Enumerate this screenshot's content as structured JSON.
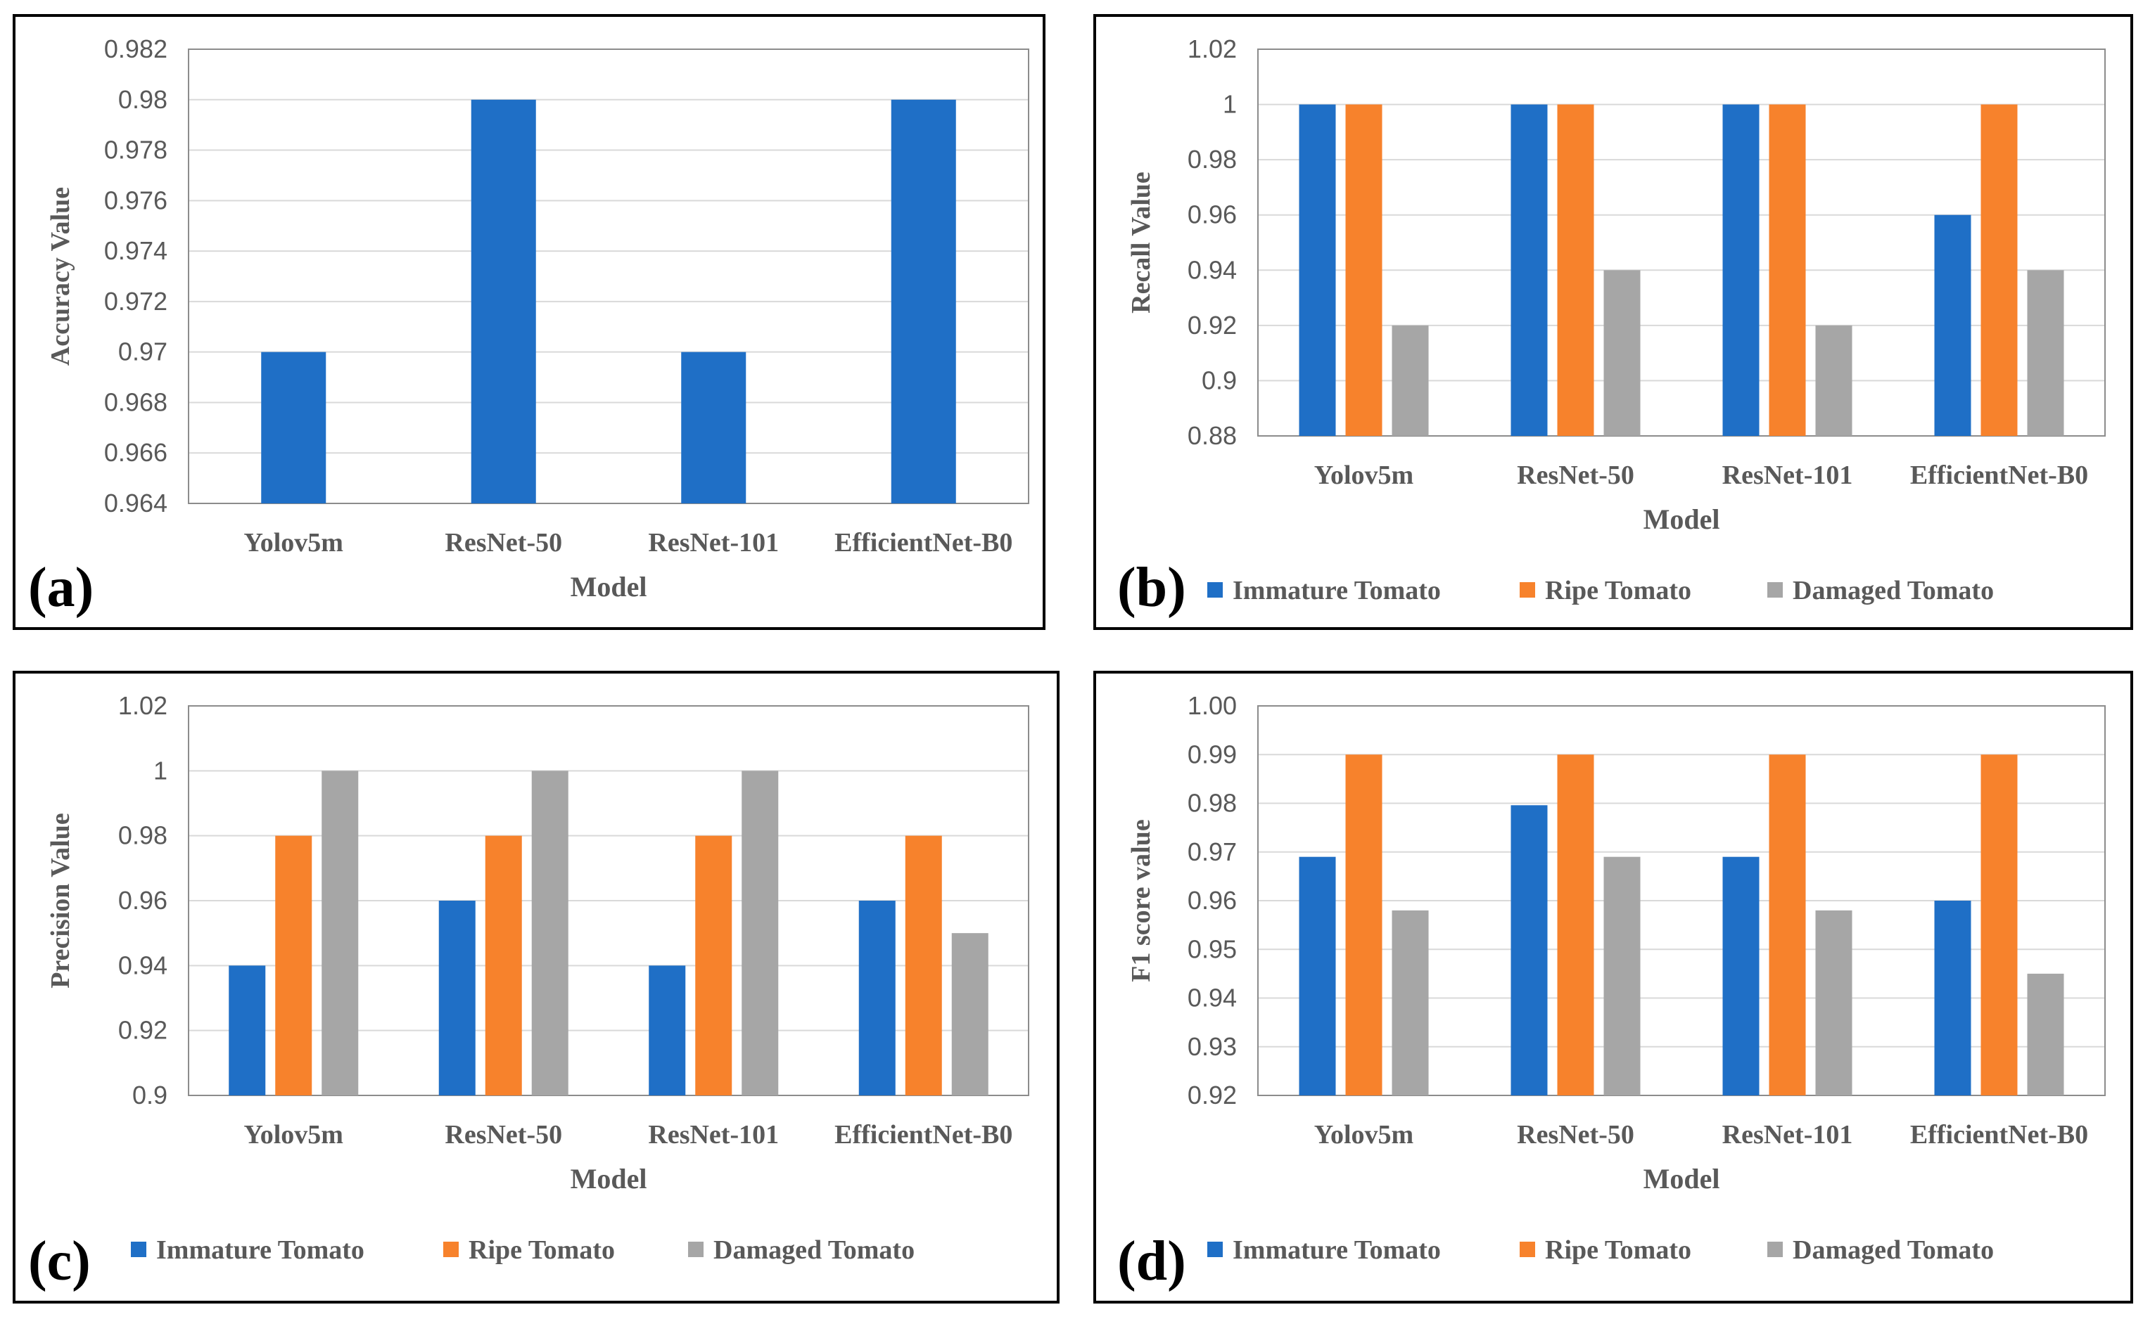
{
  "colors": {
    "immature": "#1f6fc6",
    "ripe": "#f7822c",
    "damaged": "#a6a6a6"
  },
  "legend_labels": [
    "Immature Tomato",
    "Ripe Tomato",
    "Damaged Tomato"
  ],
  "chart_data": [
    {
      "id": "a",
      "type": "bar",
      "panel_label": "(a)",
      "xlabel": "Model",
      "ylabel": "Accuracy Value",
      "categories": [
        "Yolov5m",
        "ResNet-50",
        "ResNet-101",
        "EfficientNet-B0"
      ],
      "ylim": [
        0.964,
        0.982
      ],
      "yticks": [
        "0.964",
        "0.966",
        "0.968",
        "0.97",
        "0.972",
        "0.974",
        "0.976",
        "0.978",
        "0.98",
        "0.982"
      ],
      "series": [
        {
          "name": "Accuracy",
          "color": "#1f6fc6",
          "values": [
            0.97,
            0.98,
            0.97,
            0.98
          ]
        }
      ],
      "legend": false
    },
    {
      "id": "b",
      "type": "bar",
      "panel_label": "(b)",
      "xlabel": "Model",
      "ylabel": "Recall Value",
      "categories": [
        "Yolov5m",
        "ResNet-50",
        "ResNet-101",
        "EfficientNet-B0"
      ],
      "ylim": [
        0.88,
        1.02
      ],
      "yticks": [
        "0.88",
        "0.9",
        "0.92",
        "0.94",
        "0.96",
        "0.98",
        "1",
        "1.02"
      ],
      "series": [
        {
          "name": "Immature Tomato",
          "color": "#1f6fc6",
          "values": [
            1.0,
            1.0,
            1.0,
            0.96
          ]
        },
        {
          "name": "Ripe Tomato",
          "color": "#f7822c",
          "values": [
            1.0,
            1.0,
            1.0,
            1.0
          ]
        },
        {
          "name": "Damaged Tomato",
          "color": "#a6a6a6",
          "values": [
            0.92,
            0.94,
            0.92,
            0.94
          ]
        }
      ],
      "legend": true
    },
    {
      "id": "c",
      "type": "bar",
      "panel_label": "(c)",
      "xlabel": "Model",
      "ylabel": "Precision Value",
      "categories": [
        "Yolov5m",
        "ResNet-50",
        "ResNet-101",
        "EfficientNet-B0"
      ],
      "ylim": [
        0.9,
        1.02
      ],
      "yticks": [
        "0.9",
        "0.92",
        "0.94",
        "0.96",
        "0.98",
        "1",
        "1.02"
      ],
      "series": [
        {
          "name": "Immature Tomato",
          "color": "#1f6fc6",
          "values": [
            0.94,
            0.96,
            0.94,
            0.96
          ]
        },
        {
          "name": "Ripe Tomato",
          "color": "#f7822c",
          "values": [
            0.98,
            0.98,
            0.98,
            0.98
          ]
        },
        {
          "name": "Damaged Tomato",
          "color": "#a6a6a6",
          "values": [
            1.0,
            1.0,
            1.0,
            0.95
          ]
        }
      ],
      "legend": true
    },
    {
      "id": "d",
      "type": "bar",
      "panel_label": "(d)",
      "xlabel": "Model",
      "ylabel": "F1 score value",
      "categories": [
        "Yolov5m",
        "ResNet-50",
        "ResNet-101",
        "EfficientNet-B0"
      ],
      "ylim": [
        0.92,
        1.0
      ],
      "yticks": [
        "0.92",
        "0.93",
        "0.94",
        "0.95",
        "0.96",
        "0.97",
        "0.98",
        "0.99",
        "1.00"
      ],
      "series": [
        {
          "name": "Immature Tomato",
          "color": "#1f6fc6",
          "values": [
            0.969,
            0.9796,
            0.969,
            0.96
          ]
        },
        {
          "name": "Ripe Tomato",
          "color": "#f7822c",
          "values": [
            0.99,
            0.99,
            0.99,
            0.99
          ]
        },
        {
          "name": "Damaged Tomato",
          "color": "#a6a6a6",
          "values": [
            0.958,
            0.969,
            0.958,
            0.945
          ]
        }
      ],
      "legend": true
    }
  ]
}
